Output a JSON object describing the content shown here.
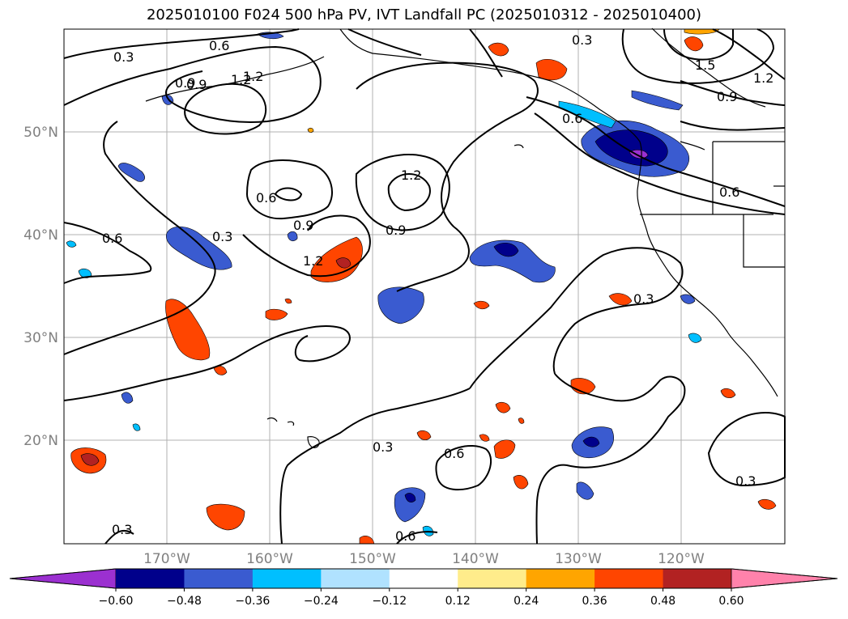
{
  "title": "2025010100 F024 500 hPa PV, IVT Landfall PC (2025010312 - 2025010400)",
  "latitude_labels": [
    "50°N",
    "40°N",
    "30°N",
    "20°N"
  ],
  "longitude_labels": [
    "170°W",
    "160°W",
    "150°W",
    "140°W",
    "130°W",
    "120°W"
  ],
  "contour_labels": [
    "0.3",
    "0.6",
    "0.9",
    "1.2",
    "1.2",
    "0.3",
    "0.6",
    "0.9",
    "1.2",
    "1.5",
    "1.2",
    "0.9",
    "0.6",
    "0.6",
    "0.6",
    "0.3",
    "0.9",
    "0.9",
    "1.2",
    "0.3",
    "0.6",
    "0.3",
    "0.3",
    "0.6",
    "0.3",
    "0.6"
  ],
  "colorbar": {
    "ticks": [
      "−0.60",
      "−0.48",
      "−0.36",
      "−0.24",
      "−0.12",
      "0.12",
      "0.24",
      "0.36",
      "0.48",
      "0.60"
    ],
    "colors": [
      "#9b30d0",
      "#00008b",
      "#3a5bd0",
      "#00bfff",
      "#b0e2ff",
      "#ffffff",
      "#ffec8b",
      "#ffa500",
      "#ff4500",
      "#b22222",
      "#ff82ab"
    ]
  }
}
